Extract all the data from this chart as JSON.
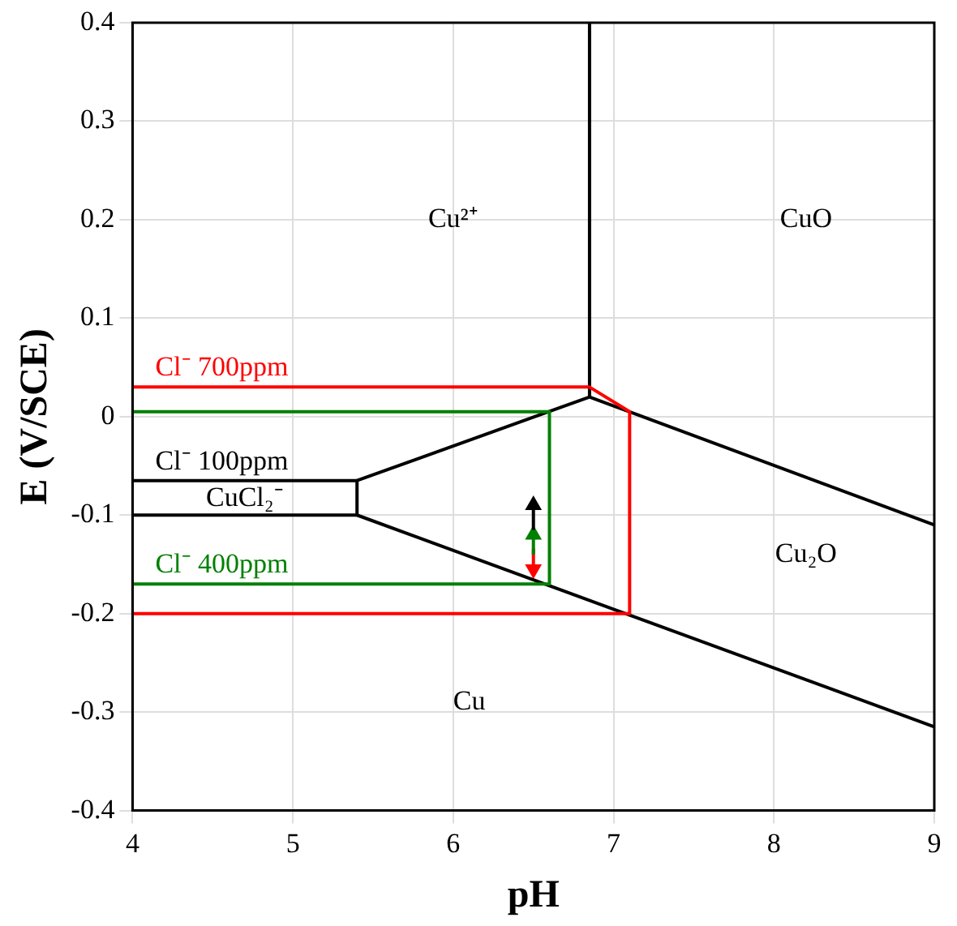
{
  "chart_data": {
    "type": "line",
    "xlabel": "pH",
    "ylabel": "E (V/SCE)",
    "xlim": [
      4,
      9
    ],
    "xticks": [
      4,
      5,
      6,
      7,
      8,
      9
    ],
    "ylim": [
      -0.4,
      0.4
    ],
    "yticks": [
      -0.4,
      -0.3,
      -0.2,
      -0.1,
      0,
      0.1,
      0.2,
      0.3,
      0.4
    ],
    "grid": true,
    "legend": false,
    "series": [
      {
        "name": "Cl⁻ 700ppm",
        "color": "#ff0000",
        "x": [
          4,
          6.85,
          7.1,
          7.1,
          4
        ],
        "values": [
          0.03,
          0.03,
          0.005,
          -0.2,
          -0.2
        ]
      },
      {
        "name": "Cl⁻ 100ppm",
        "color": "#000000",
        "x": [
          4,
          5.4,
          5.4,
          4
        ],
        "values": [
          -0.065,
          -0.065,
          -0.1,
          -0.1
        ]
      },
      {
        "name": "Cl⁻ 400ppm",
        "color": "#008000",
        "x": [
          4,
          6.6,
          6.6,
          4
        ],
        "values": [
          -0.17,
          -0.17,
          0.005,
          0.005
        ]
      },
      {
        "color": "#000000",
        "x": [
          6.85,
          6.85,
          9,
          null,
          5.4,
          6.85,
          null,
          5.4,
          9
        ],
        "values": [
          0.4,
          0.02,
          -0.11,
          null,
          -0.065,
          0.02,
          null,
          -0.1,
          -0.315
        ]
      },
      {
        "color": "#000000",
        "marker": "triangle",
        "x": [
          6.5,
          6.5
        ],
        "values": [
          -0.115,
          -0.09
        ]
      },
      {
        "color": "#008000",
        "marker": "triangle",
        "x": [
          6.5,
          6.5
        ],
        "values": [
          -0.14,
          -0.12
        ]
      },
      {
        "color": "#ff0000",
        "marker": "triangle",
        "x": [
          6.5,
          6.5
        ],
        "values": [
          -0.135,
          -0.155
        ]
      }
    ],
    "annotations": [
      "Cu²⁺",
      "CuO",
      "CuCl₂⁻",
      "Cu₂O",
      "Cu"
    ]
  }
}
